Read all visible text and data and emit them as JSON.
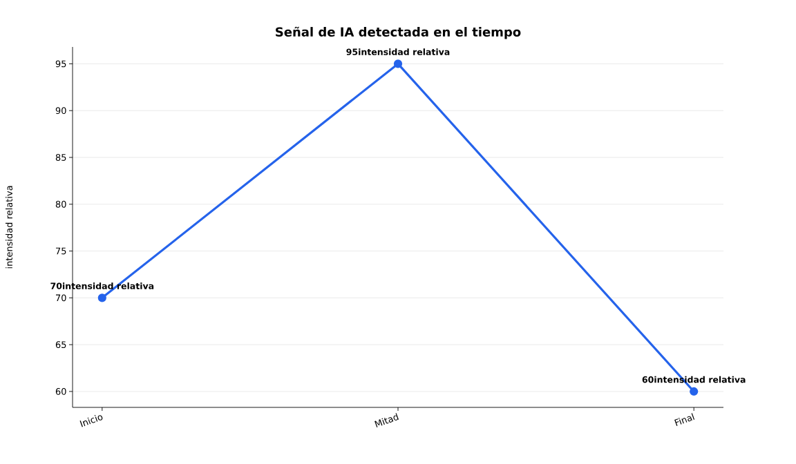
{
  "chart_data": {
    "type": "line",
    "title": "Señal de IA detectada en el tiempo",
    "ylabel": "intensidad relativa",
    "categories": [
      "Inicio",
      "Mitad",
      "Final"
    ],
    "series": [
      {
        "color": "#2563eb",
        "values": [
          70,
          95,
          60
        ],
        "value_labels": [
          "70intensidad relativa",
          "95intensidad relativa",
          "60intensidad relativa"
        ]
      }
    ],
    "ylim": [
      58.3,
      96.8
    ],
    "yticks": [
      60,
      65,
      70,
      75,
      80,
      85,
      90,
      95
    ],
    "grid": "y",
    "marker": "circle",
    "line_style": "solid"
  }
}
